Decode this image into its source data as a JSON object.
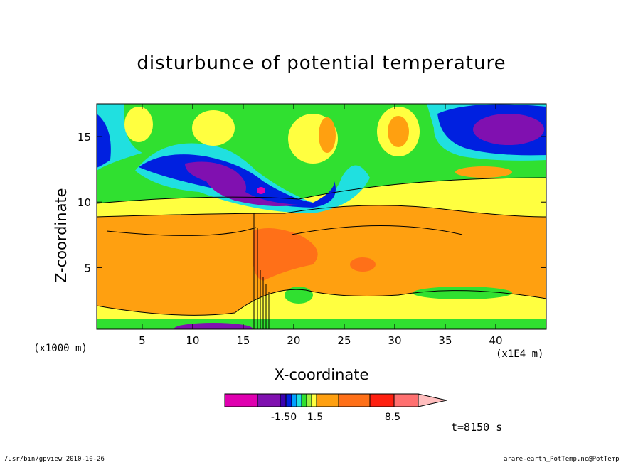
{
  "chart_data": {
    "type": "heatmap",
    "title": "disturbunce of potential temperature",
    "xlabel": "X-coordinate",
    "ylabel": "Z-coordinate",
    "x_multiplier": "(x1E4 m)",
    "y_multiplier": "(x1000 m)",
    "xlim": [
      0.5,
      45
    ],
    "ylim": [
      0.3,
      17.5
    ],
    "x_ticks": [
      5,
      10,
      15,
      20,
      25,
      30,
      35,
      40
    ],
    "y_ticks": [
      5,
      10,
      15
    ],
    "colorbar": {
      "colors": [
        "#e000b0",
        "#8010b0",
        "#3a00b0",
        "#0020e0",
        "#00a0ff",
        "#20e0e0",
        "#30e030",
        "#a0f040",
        "#ffff40",
        "#ffa010",
        "#ff7018",
        "#ff2010",
        "#ff7070",
        "#ffbebe"
      ],
      "labels": [
        "-1.50",
        "1.5",
        "8.5"
      ]
    },
    "annotation": "t=8150 s"
  },
  "footer": {
    "left": "/usr/bin/gpview   2010-10-26",
    "right": "arare-earth_PotTemp.nc@PotTemp"
  }
}
